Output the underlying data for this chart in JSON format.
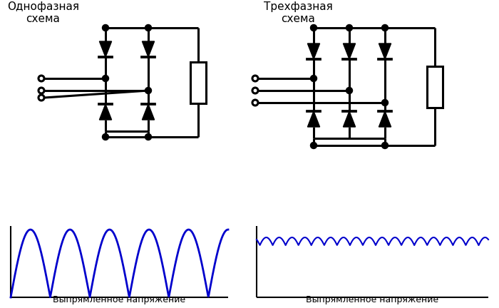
{
  "title1": "Однофазная\nсхема",
  "title2": "Трехфазная\nсхема",
  "label1": "Выпрямленное напряжение",
  "label2": "Выпрямленное напряжение",
  "bg_color": "#ffffff",
  "line_color": "#000000",
  "wave_color": "#0000cc",
  "text_color": "#000000",
  "lw": 2.2,
  "dot_r": 4.5
}
